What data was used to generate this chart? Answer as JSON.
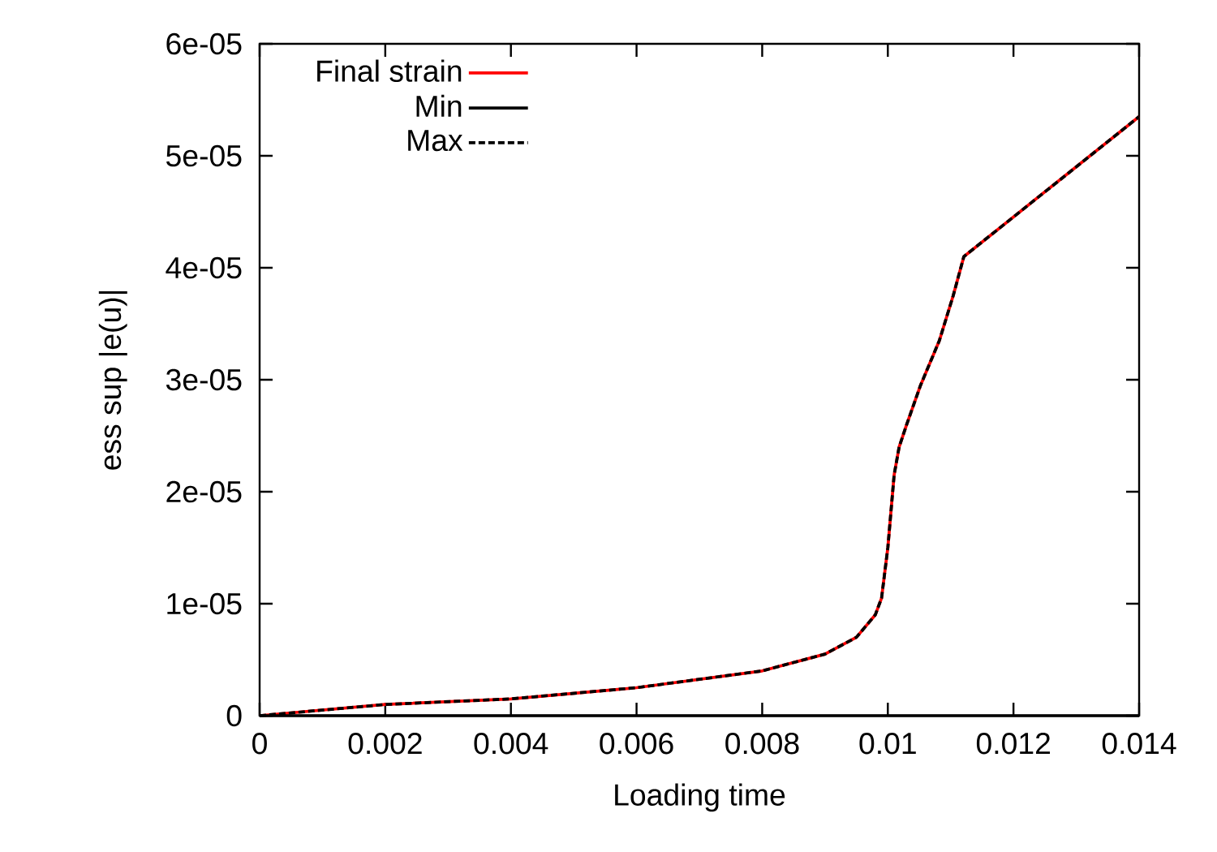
{
  "chart_data": {
    "type": "line",
    "xlabel": "Loading time",
    "ylabel": "ess sup |e(u)|",
    "x": [
      0,
      0.001,
      0.002,
      0.004,
      0.006,
      0.008,
      0.009,
      0.0095,
      0.0098,
      0.0099,
      0.01,
      0.0101,
      0.01018,
      0.0103,
      0.01052,
      0.01082,
      0.01104,
      0.01121,
      0.014
    ],
    "series": [
      {
        "name": "Final strain",
        "color": "#ff0000",
        "line_style": "solid",
        "values": [
          0,
          5e-07,
          1e-06,
          1.5e-06,
          2.5e-06,
          4e-06,
          5.5e-06,
          7e-06,
          9e-06,
          1.05e-05,
          1.5e-05,
          2.15e-05,
          2.4e-05,
          2.6e-05,
          2.95e-05,
          3.35e-05,
          3.75e-05,
          4.1e-05,
          5.35e-05
        ]
      },
      {
        "name": "Min",
        "color": "#000000",
        "line_style": "solid",
        "x": [
          0,
          0.014
        ],
        "values": [
          0,
          0
        ]
      },
      {
        "name": "Max",
        "color": "#000000",
        "line_style": "dashed",
        "values": [
          0,
          5e-07,
          1e-06,
          1.5e-06,
          2.5e-06,
          4e-06,
          5.5e-06,
          7e-06,
          9e-06,
          1.05e-05,
          1.5e-05,
          2.15e-05,
          2.4e-05,
          2.6e-05,
          2.95e-05,
          3.35e-05,
          3.75e-05,
          4.1e-05,
          5.35e-05
        ]
      }
    ],
    "xlim": [
      0,
      0.014
    ],
    "ylim": [
      0,
      6e-05
    ],
    "xticks": [
      0,
      0.002,
      0.004,
      0.006,
      0.008,
      0.01,
      0.012,
      0.014
    ],
    "yticks": [
      0,
      {
        "value": 1e-05,
        "label": "1e-05"
      },
      {
        "value": 2e-05,
        "label": "2e-05"
      },
      {
        "value": 3e-05,
        "label": "3e-05"
      },
      {
        "value": 4e-05,
        "label": "4e-05"
      },
      {
        "value": 5e-05,
        "label": "5e-05"
      },
      {
        "value": 6e-05,
        "label": "6e-05"
      }
    ],
    "grid": false,
    "legend": "top left",
    "marker": "none"
  }
}
